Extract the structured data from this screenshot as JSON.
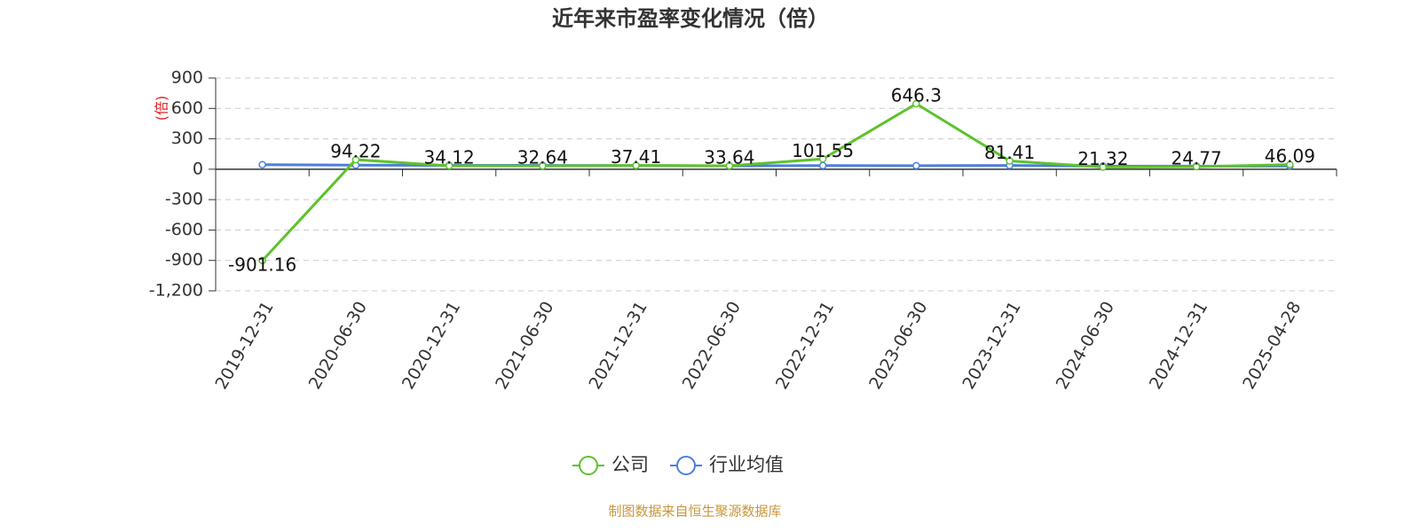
{
  "chart_data": {
    "type": "line",
    "title": "近年来市盈率变化情况（倍）",
    "y_label": "(倍)",
    "source": "制图数据来自恒生聚源数据库",
    "categories": [
      "2019-12-31",
      "2020-06-30",
      "2020-12-31",
      "2021-06-30",
      "2021-12-31",
      "2022-06-30",
      "2022-12-31",
      "2023-06-30",
      "2023-12-31",
      "2024-06-30",
      "2024-12-31",
      "2025-04-28"
    ],
    "series": [
      {
        "name": "公司",
        "color": "#5ec22c",
        "values": [
          -901.16,
          94.22,
          34.12,
          32.64,
          37.41,
          33.64,
          101.55,
          646.3,
          81.41,
          21.32,
          24.77,
          46.09
        ]
      },
      {
        "name": "行业均值",
        "color": "#4a7fdc",
        "values": [
          45,
          40,
          38,
          38,
          36,
          33,
          36,
          35,
          37,
          30,
          30,
          32
        ]
      }
    ],
    "ylim": [
      -1200,
      900
    ],
    "yticks": [
      900,
      600,
      300,
      0,
      -300,
      -600,
      -900,
      {
        "value": -1200,
        "label": "-1,200"
      }
    ],
    "grid": true
  }
}
